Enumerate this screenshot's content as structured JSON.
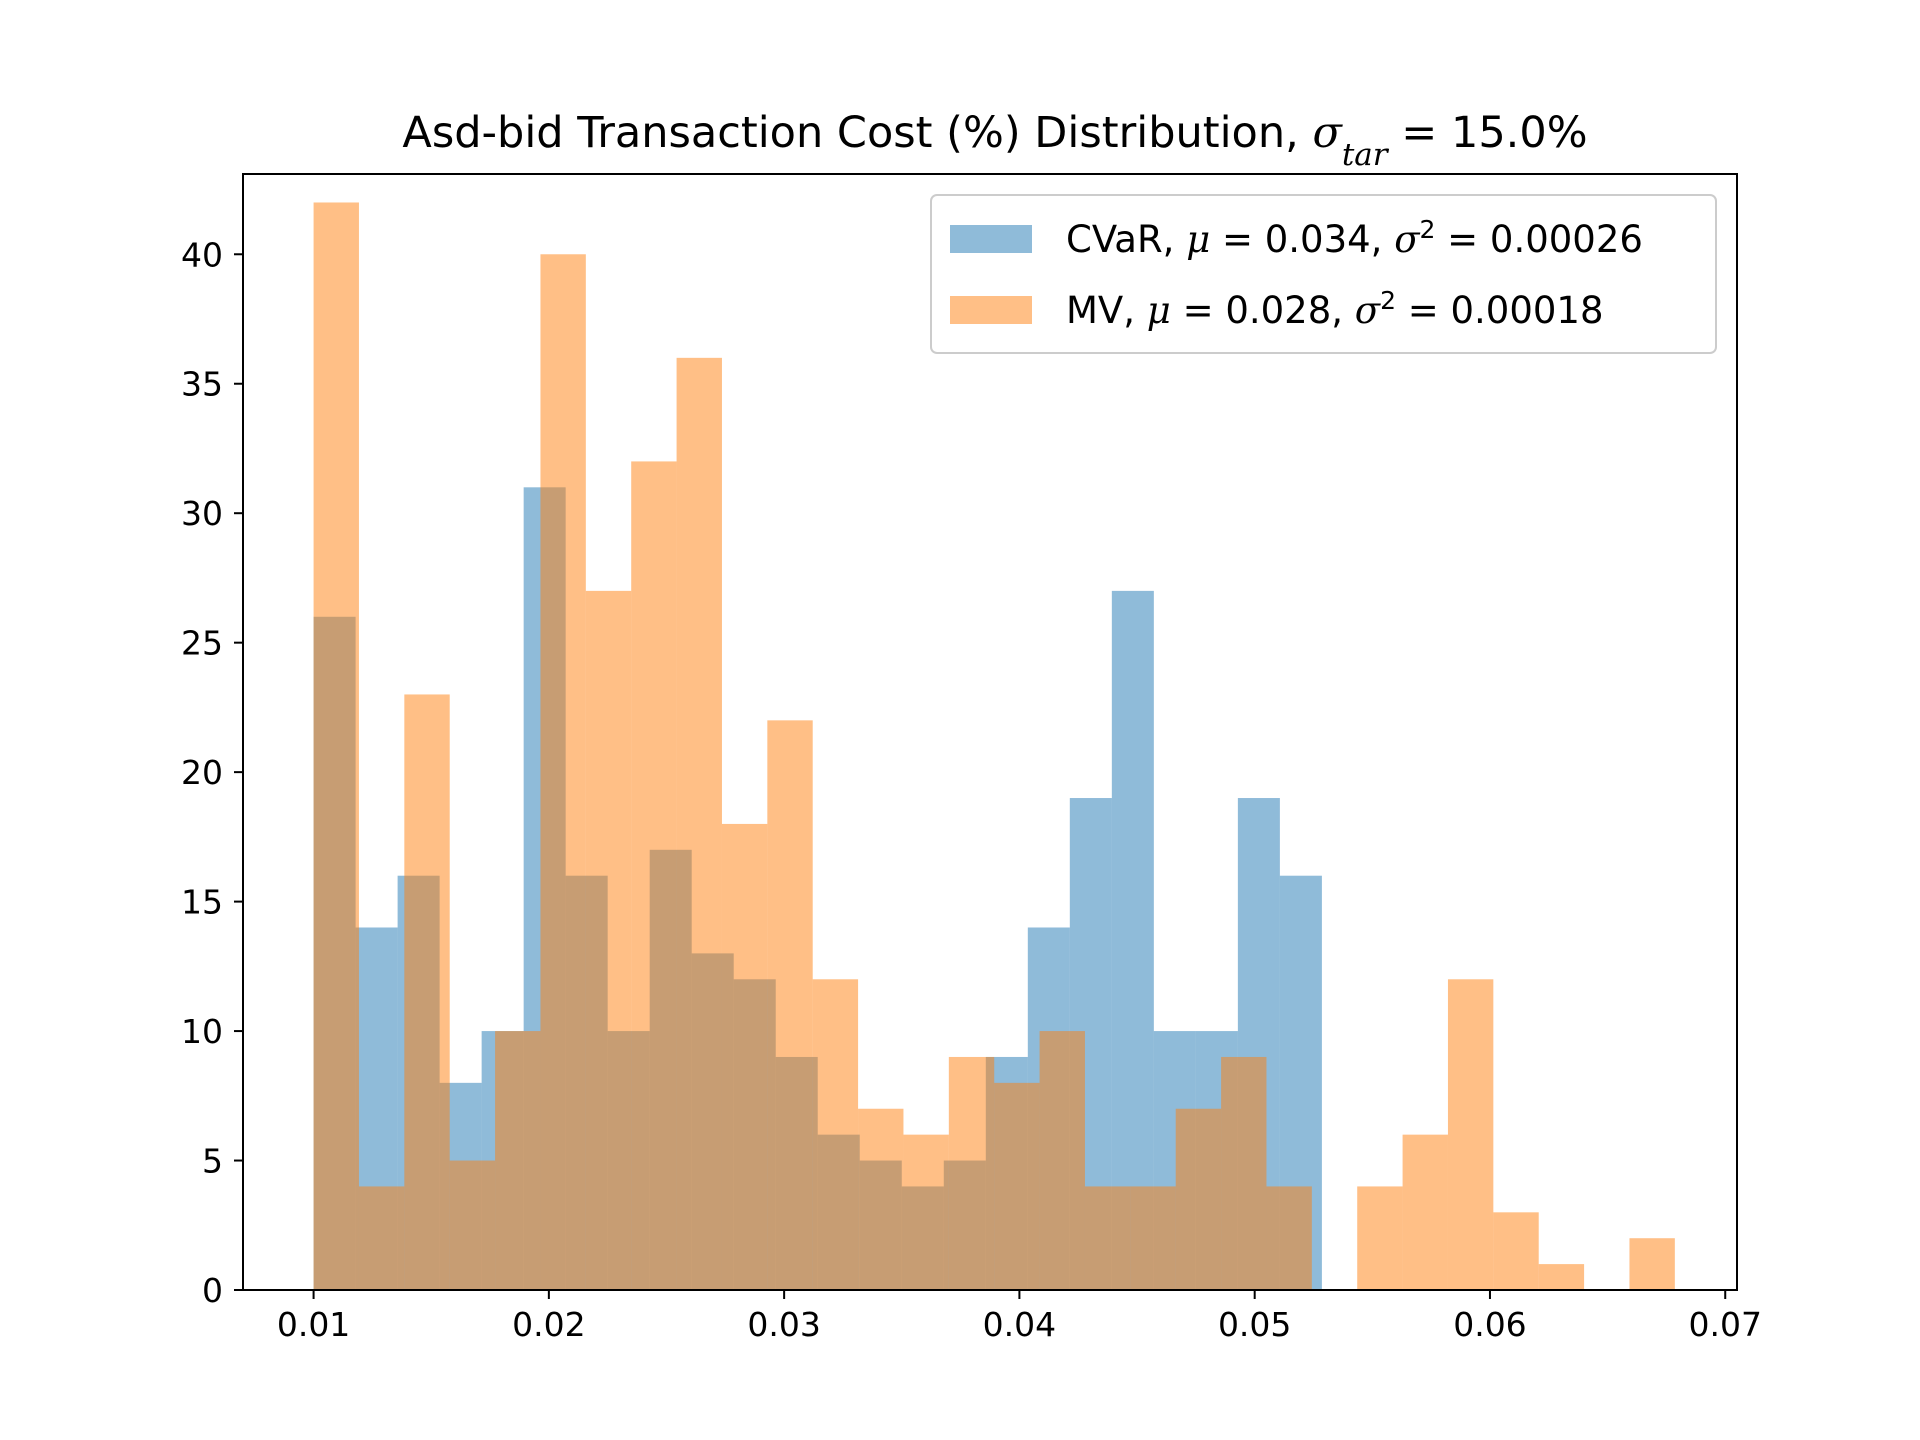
{
  "chart_data": {
    "type": "bar",
    "subtype": "overlapping-histogram",
    "title": {
      "prefix": "Asd-bid Transaction Cost (%) Distribution, ",
      "symbol": "σ",
      "subscript": "tar",
      "suffix": " = 15.0%"
    },
    "xlabel": "",
    "ylabel": "",
    "xlim": [
      0.007,
      0.0705
    ],
    "ylim": [
      0,
      43.1
    ],
    "xticks": [
      0.01,
      0.02,
      0.03,
      0.04,
      0.05,
      0.06,
      0.07
    ],
    "xtick_labels": [
      "0.01",
      "0.02",
      "0.03",
      "0.04",
      "0.05",
      "0.06",
      "0.07"
    ],
    "yticks": [
      0,
      5,
      10,
      15,
      20,
      25,
      30,
      35,
      40
    ],
    "ytick_labels": [
      "0",
      "5",
      "10",
      "15",
      "20",
      "25",
      "30",
      "35",
      "40"
    ],
    "grid": false,
    "legend_position": "top-right",
    "alpha": 0.5,
    "series": [
      {
        "name": "CVaR",
        "legend_label": {
          "name": "CVaR, ",
          "mu_sym": "μ",
          "mu": " = 0.034, ",
          "sigma_sym": "σ",
          "sq": "2",
          "var": " = 0.00026"
        },
        "mean": 0.034,
        "variance": 0.00026,
        "color": "#1f77b4",
        "bin_start": 0.01,
        "bin_width": 0.0017857,
        "counts": [
          26,
          14,
          16,
          8,
          10,
          31,
          16,
          10,
          17,
          13,
          12,
          9,
          6,
          5,
          4,
          5,
          9,
          14,
          19,
          27,
          10,
          10,
          19,
          16
        ]
      },
      {
        "name": "MV",
        "legend_label": {
          "name": "MV, ",
          "mu_sym": "μ",
          "mu": " = 0.028, ",
          "sigma_sym": "σ",
          "sq": "2",
          "var": " = 0.00018"
        },
        "mean": 0.028,
        "variance": 0.00018,
        "color": "#ff7f0e",
        "bin_start": 0.01,
        "bin_width": 0.0019286,
        "counts": [
          42,
          4,
          23,
          5,
          10,
          40,
          27,
          32,
          36,
          18,
          22,
          12,
          7,
          6,
          9,
          8,
          10,
          4,
          4,
          7,
          9,
          4,
          0,
          4,
          6,
          12,
          3,
          1,
          0,
          2
        ]
      }
    ]
  }
}
